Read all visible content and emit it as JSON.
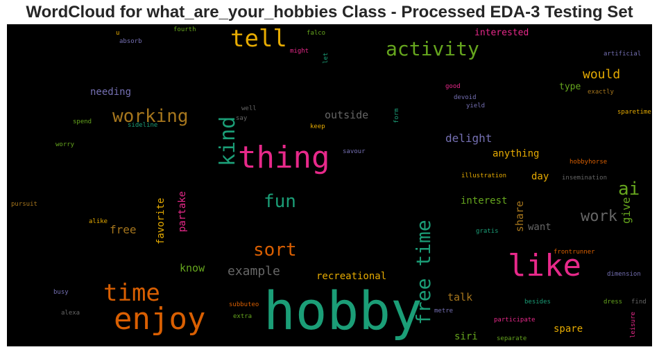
{
  "title": "WordCloud for what_are_your_hobbies Class - Processed EDA-3 Testing Set",
  "chart_data": {
    "type": "wordcloud",
    "colormap": "Dark2",
    "background": "#000000",
    "words": [
      {
        "text": "hobby",
        "color": "#1b9e77"
      },
      {
        "text": "like",
        "color": "#e7298a"
      },
      {
        "text": "thing",
        "color": "#e7298a"
      },
      {
        "text": "enjoy",
        "color": "#d95f02"
      },
      {
        "text": "time",
        "color": "#d95f02"
      },
      {
        "text": "tell",
        "color": "#e6ab02"
      },
      {
        "text": "free time",
        "color": "#1b9e77"
      },
      {
        "text": "kind",
        "color": "#1b9e77"
      },
      {
        "text": "activity",
        "color": "#66a61e"
      },
      {
        "text": "working",
        "color": "#a6761d"
      },
      {
        "text": "sort",
        "color": "#d95f02"
      },
      {
        "text": "fun",
        "color": "#1b9e77"
      },
      {
        "text": "ai",
        "color": "#66a61e"
      },
      {
        "text": "work",
        "color": "#666666"
      },
      {
        "text": "would",
        "color": "#e6ab02"
      },
      {
        "text": "example",
        "color": "#666666"
      },
      {
        "text": "free",
        "color": "#a6761d"
      },
      {
        "text": "delight",
        "color": "#7570b3"
      },
      {
        "text": "outside",
        "color": "#666666"
      },
      {
        "text": "give",
        "color": "#66a61e"
      },
      {
        "text": "share",
        "color": "#a6761d"
      },
      {
        "text": "favorite",
        "color": "#e6ab02"
      },
      {
        "text": "partake",
        "color": "#e7298a"
      },
      {
        "text": "needing",
        "color": "#7570b3"
      },
      {
        "text": "know",
        "color": "#66a61e"
      },
      {
        "text": "recreational",
        "color": "#e6ab02"
      },
      {
        "text": "talk",
        "color": "#a6761d"
      },
      {
        "text": "anything",
        "color": "#e6ab02"
      },
      {
        "text": "interest",
        "color": "#66a61e"
      },
      {
        "text": "want",
        "color": "#666666"
      },
      {
        "text": "spare",
        "color": "#e6ab02"
      },
      {
        "text": "siri",
        "color": "#66a61e"
      },
      {
        "text": "day",
        "color": "#e6ab02"
      },
      {
        "text": "type",
        "color": "#66a61e"
      },
      {
        "text": "interested",
        "color": "#e7298a"
      },
      {
        "text": "falco",
        "color": "#66a61e"
      },
      {
        "text": "fourth",
        "color": "#66a61e"
      },
      {
        "text": "u",
        "color": "#e6ab02"
      },
      {
        "text": "absorb",
        "color": "#7570b3"
      },
      {
        "text": "might",
        "color": "#e7298a"
      },
      {
        "text": "let",
        "color": "#1b9e77"
      },
      {
        "text": "artificial",
        "color": "#7570b3"
      },
      {
        "text": "good",
        "color": "#e7298a"
      },
      {
        "text": "devoid",
        "color": "#7570b3"
      },
      {
        "text": "exactly",
        "color": "#a6761d"
      },
      {
        "text": "yield",
        "color": "#7570b3"
      },
      {
        "text": "sparetime",
        "color": "#e6ab02"
      },
      {
        "text": "well",
        "color": "#666666"
      },
      {
        "text": "say",
        "color": "#666666"
      },
      {
        "text": "spend",
        "color": "#66a61e"
      },
      {
        "text": "sideline",
        "color": "#1b9e77"
      },
      {
        "text": "keep",
        "color": "#e6ab02"
      },
      {
        "text": "form",
        "color": "#1b9e77"
      },
      {
        "text": "worry",
        "color": "#66a61e"
      },
      {
        "text": "savour",
        "color": "#7570b3"
      },
      {
        "text": "hobbyhorse",
        "color": "#d95f02"
      },
      {
        "text": "illustration",
        "color": "#e6ab02"
      },
      {
        "text": "insemination",
        "color": "#666666"
      },
      {
        "text": "pursuit",
        "color": "#a6761d"
      },
      {
        "text": "alike",
        "color": "#e6ab02"
      },
      {
        "text": "gratis",
        "color": "#1b9e77"
      },
      {
        "text": "frontrunner",
        "color": "#d95f02"
      },
      {
        "text": "dimension",
        "color": "#7570b3"
      },
      {
        "text": "busy",
        "color": "#7570b3"
      },
      {
        "text": "subbuteo",
        "color": "#d95f02"
      },
      {
        "text": "alexa",
        "color": "#666666"
      },
      {
        "text": "extra",
        "color": "#66a61e"
      },
      {
        "text": "metre",
        "color": "#7570b3"
      },
      {
        "text": "besides",
        "color": "#1b9e77"
      },
      {
        "text": "dress",
        "color": "#66a61e"
      },
      {
        "text": "find",
        "color": "#666666"
      },
      {
        "text": "participate",
        "color": "#e7298a"
      },
      {
        "text": "leisure",
        "color": "#e7298a"
      },
      {
        "text": "separate",
        "color": "#66a61e"
      }
    ]
  }
}
